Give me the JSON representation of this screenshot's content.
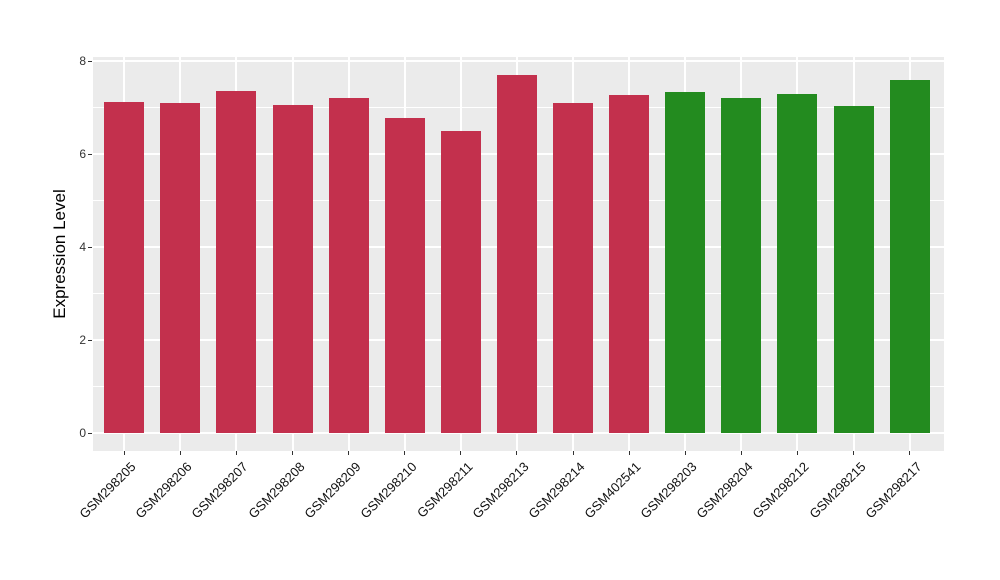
{
  "chart_data": {
    "type": "bar",
    "title": "",
    "xlabel": "",
    "ylabel": "Expression Level",
    "ylim": [
      0,
      8
    ],
    "yticks_major": [
      0,
      2,
      4,
      6,
      8
    ],
    "yticks_minor": [
      1,
      3,
      5,
      7
    ],
    "grid": "on",
    "legend_position": "none",
    "panel_background": "#EBEBEB",
    "grid_color": "#FFFFFF",
    "tick_color": "#333333",
    "categories": [
      "GSM298205",
      "GSM298206",
      "GSM298207",
      "GSM298208",
      "GSM298209",
      "GSM298210",
      "GSM298211",
      "GSM298213",
      "GSM298214",
      "GSM402541",
      "GSM298203",
      "GSM298204",
      "GSM298212",
      "GSM298215",
      "GSM298217"
    ],
    "values": [
      7.12,
      7.09,
      7.36,
      7.05,
      7.2,
      6.78,
      6.5,
      7.7,
      7.1,
      7.28,
      7.33,
      7.21,
      7.29,
      7.03,
      7.6
    ],
    "bar_colors": [
      "#C3304D",
      "#C3304D",
      "#C3304D",
      "#C3304D",
      "#C3304D",
      "#C3304D",
      "#C3304D",
      "#C3304D",
      "#C3304D",
      "#C3304D",
      "#238B1F",
      "#238B1F",
      "#238B1F",
      "#238B1F",
      "#238B1F"
    ],
    "group_colors": {
      "group1": "#C3304D",
      "group2": "#238B1F"
    }
  }
}
